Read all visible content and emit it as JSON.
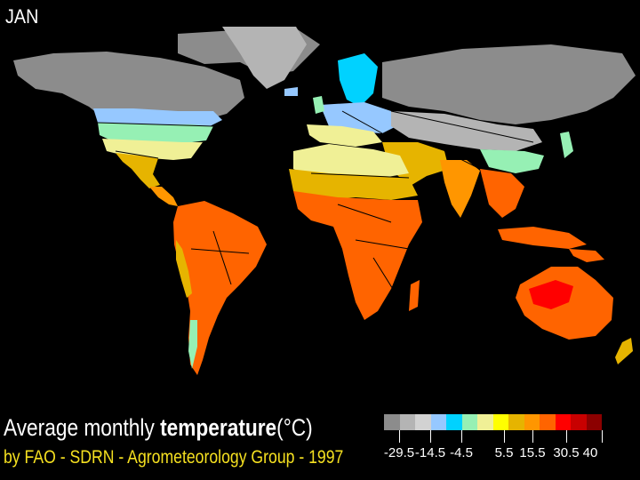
{
  "header": {
    "month": "JAN"
  },
  "footer": {
    "title_plain": "Average monthly ",
    "title_bold": "temperature",
    "title_unit": "(°C)",
    "credit": "by FAO - SDRN - Agrometeorology Group - 1997"
  },
  "legend": {
    "colors": [
      "#8c8c8c",
      "#b4b4b4",
      "#d2d2d2",
      "#96c8ff",
      "#00d2ff",
      "#96f0b4",
      "#f0f096",
      "#ffff00",
      "#e6b400",
      "#ff9600",
      "#ff6400",
      "#ff0000",
      "#c80000",
      "#8c0000"
    ],
    "ticks": [
      "-29.5",
      "-14.5",
      "-4.5",
      "5.5",
      "15.5",
      "30.5",
      "40"
    ]
  },
  "map": {
    "background_color": "#000000",
    "border_color": "#000000"
  }
}
